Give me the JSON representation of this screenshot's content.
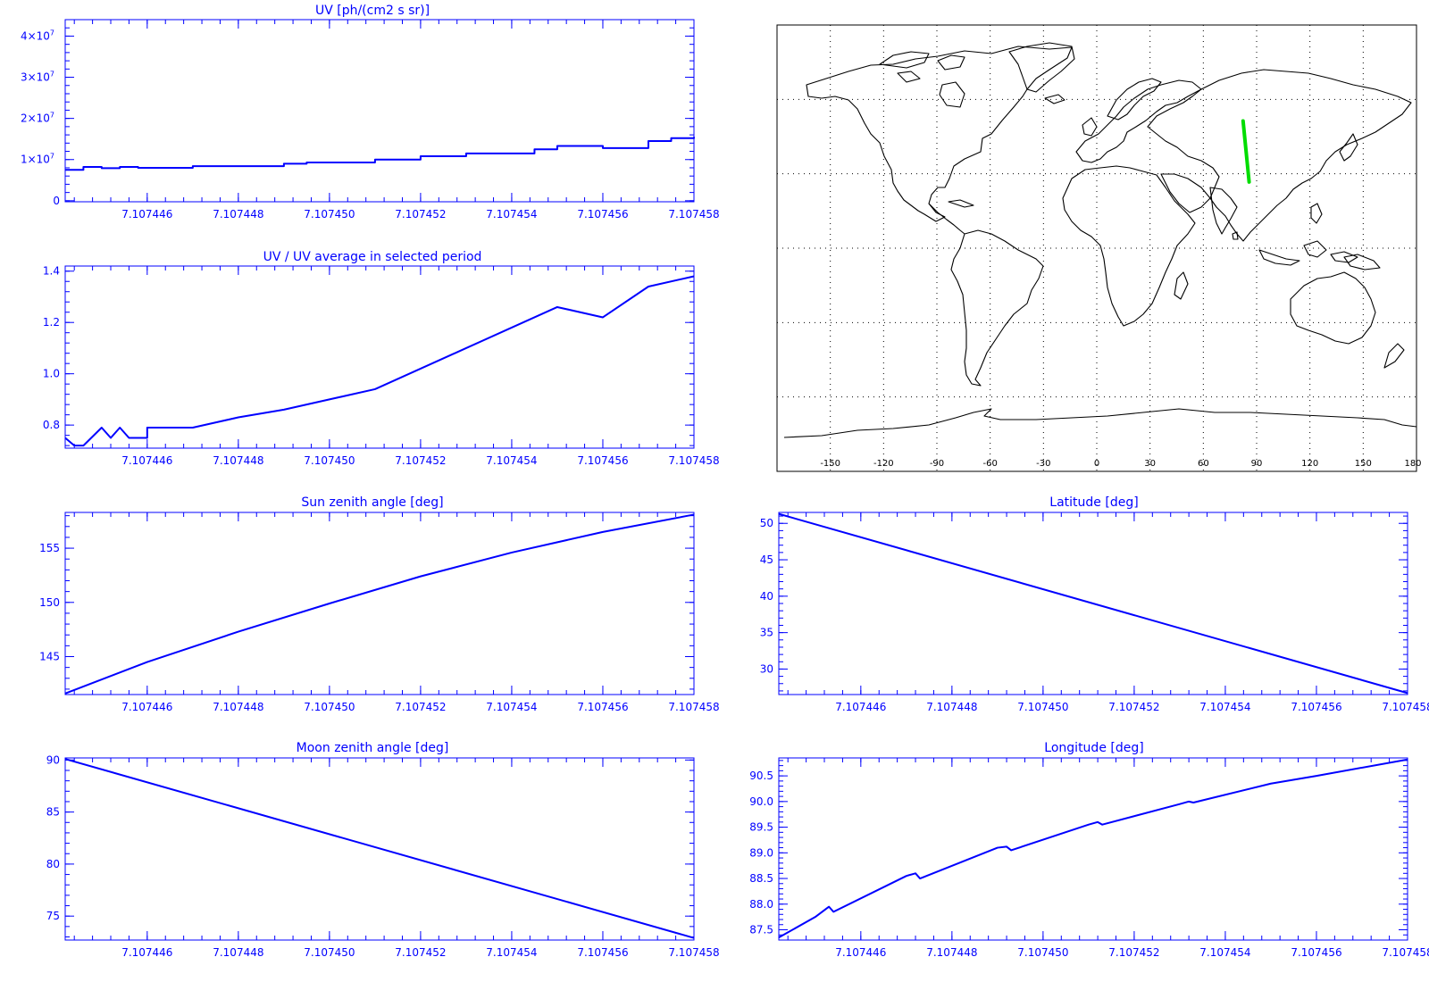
{
  "chart_data": [
    {
      "id": "uv",
      "type": "line",
      "title": "UV [ph/(cm2 s sr)]",
      "xlabel": "",
      "ylabel": "",
      "xlim": [
        7.1074442,
        7.107458
      ],
      "ylim": [
        -250000,
        44000000
      ],
      "xticks": [
        {
          "value": 7.107446,
          "label": "7.107446"
        },
        {
          "value": 7.107448,
          "label": "7.107448"
        },
        {
          "value": 7.10745,
          "label": "7.107450"
        },
        {
          "value": 7.107452,
          "label": "7.107452"
        },
        {
          "value": 7.107454,
          "label": "7.107454"
        },
        {
          "value": 7.107456,
          "label": "7.107456"
        },
        {
          "value": 7.107458,
          "label": "7.107458"
        }
      ],
      "yticks": [
        {
          "value": 0,
          "label": "0"
        },
        {
          "value": 10000000,
          "label": "1×10",
          "exp": "7"
        },
        {
          "value": 20000000,
          "label": "2×10",
          "exp": "7"
        },
        {
          "value": 30000000,
          "label": "3×10",
          "exp": "7"
        },
        {
          "value": 40000000,
          "label": "4×10",
          "exp": "7"
        }
      ],
      "series": [
        {
          "step": true,
          "x": [
            7.1074442,
            7.1074446,
            7.107445,
            7.1074454,
            7.1074458,
            7.107447,
            7.107449,
            7.1074495,
            7.107451,
            7.107452,
            7.107453,
            7.1074545,
            7.107455,
            7.107456,
            7.107457,
            7.1074575,
            7.107458
          ],
          "y": [
            7500000,
            8200000,
            7900000,
            8200000,
            8000000,
            8400000,
            9000000,
            9300000,
            10000000,
            10800000,
            11500000,
            12500000,
            13300000,
            12800000,
            14500000,
            15200000,
            15500000
          ]
        }
      ],
      "grid": false
    },
    {
      "id": "uv-ratio",
      "type": "line",
      "title": "UV / UV average in selected period",
      "xlabel": "",
      "ylabel": "",
      "xlim": [
        7.1074442,
        7.107458
      ],
      "ylim": [
        0.71,
        1.42
      ],
      "xticks": [
        {
          "value": 7.107446,
          "label": "7.107446"
        },
        {
          "value": 7.107448,
          "label": "7.107448"
        },
        {
          "value": 7.10745,
          "label": "7.107450"
        },
        {
          "value": 7.107452,
          "label": "7.107452"
        },
        {
          "value": 7.107454,
          "label": "7.107454"
        },
        {
          "value": 7.107456,
          "label": "7.107456"
        },
        {
          "value": 7.107458,
          "label": "7.107458"
        }
      ],
      "yticks": [
        {
          "value": 0.8,
          "label": "0.8"
        },
        {
          "value": 1.0,
          "label": "1.0"
        },
        {
          "value": 1.2,
          "label": "1.2"
        },
        {
          "value": 1.4,
          "label": "1.4"
        }
      ],
      "series": [
        {
          "x": [
            7.1074442,
            7.1074444,
            7.1074446,
            7.107445,
            7.1074452,
            7.1074454,
            7.1074456,
            7.107446,
            7.107446,
            7.107447,
            7.107448,
            7.107449,
            7.10745,
            7.107451,
            7.107452,
            7.107453,
            7.107454,
            7.107455,
            7.107456,
            7.107457,
            7.107458
          ],
          "y": [
            0.75,
            0.72,
            0.72,
            0.79,
            0.75,
            0.79,
            0.75,
            0.75,
            0.79,
            0.79,
            0.83,
            0.86,
            0.9,
            0.94,
            1.02,
            1.1,
            1.18,
            1.26,
            1.22,
            1.34,
            1.38
          ]
        }
      ],
      "grid": false
    },
    {
      "id": "sun-zenith",
      "type": "line",
      "title": "Sun zenith angle [deg]",
      "xlabel": "",
      "ylabel": "",
      "xlim": [
        7.1074442,
        7.107458
      ],
      "ylim": [
        141.5,
        158.3
      ],
      "xticks": [
        {
          "value": 7.107446,
          "label": "7.107446"
        },
        {
          "value": 7.107448,
          "label": "7.107448"
        },
        {
          "value": 7.10745,
          "label": "7.107450"
        },
        {
          "value": 7.107452,
          "label": "7.107452"
        },
        {
          "value": 7.107454,
          "label": "7.107454"
        },
        {
          "value": 7.107456,
          "label": "7.107456"
        },
        {
          "value": 7.107458,
          "label": "7.107458"
        }
      ],
      "yticks": [
        {
          "value": 145,
          "label": "145"
        },
        {
          "value": 150,
          "label": "150"
        },
        {
          "value": 155,
          "label": "155"
        }
      ],
      "series": [
        {
          "x": [
            7.1074442,
            7.107446,
            7.107448,
            7.10745,
            7.107452,
            7.107454,
            7.107456,
            7.107458
          ],
          "y": [
            141.6,
            144.5,
            147.3,
            149.9,
            152.4,
            154.6,
            156.5,
            158.1
          ]
        }
      ],
      "grid": false
    },
    {
      "id": "latitude",
      "type": "line",
      "title": "Latitude [deg]",
      "xlabel": "",
      "ylabel": "",
      "xlim": [
        7.1074442,
        7.107458
      ],
      "ylim": [
        26.5,
        51.5
      ],
      "xticks": [
        {
          "value": 7.107446,
          "label": "7.107446"
        },
        {
          "value": 7.107448,
          "label": "7.107448"
        },
        {
          "value": 7.10745,
          "label": "7.107450"
        },
        {
          "value": 7.107452,
          "label": "7.107452"
        },
        {
          "value": 7.107454,
          "label": "7.107454"
        },
        {
          "value": 7.107456,
          "label": "7.107456"
        },
        {
          "value": 7.107458,
          "label": "7.107458"
        }
      ],
      "yticks": [
        {
          "value": 30,
          "label": "30"
        },
        {
          "value": 35,
          "label": "35"
        },
        {
          "value": 40,
          "label": "40"
        },
        {
          "value": 45,
          "label": "45"
        },
        {
          "value": 50,
          "label": "50"
        }
      ],
      "series": [
        {
          "x": [
            7.1074442,
            7.107458
          ],
          "y": [
            51.3,
            26.7
          ]
        }
      ],
      "grid": false
    },
    {
      "id": "moon-zenith",
      "type": "line",
      "title": "Moon zenith angle [deg]",
      "xlabel": "",
      "ylabel": "",
      "xlim": [
        7.1074442,
        7.107458
      ],
      "ylim": [
        72.7,
        90.2
      ],
      "xticks": [
        {
          "value": 7.107446,
          "label": "7.107446"
        },
        {
          "value": 7.107448,
          "label": "7.107448"
        },
        {
          "value": 7.10745,
          "label": "7.107450"
        },
        {
          "value": 7.107452,
          "label": "7.107452"
        },
        {
          "value": 7.107454,
          "label": "7.107454"
        },
        {
          "value": 7.107456,
          "label": "7.107456"
        },
        {
          "value": 7.107458,
          "label": "7.107458"
        }
      ],
      "yticks": [
        {
          "value": 75,
          "label": "75"
        },
        {
          "value": 80,
          "label": "80"
        },
        {
          "value": 85,
          "label": "85"
        },
        {
          "value": 90,
          "label": "90"
        }
      ],
      "series": [
        {
          "x": [
            7.1074442,
            7.107458
          ],
          "y": [
            90.1,
            72.9
          ]
        }
      ],
      "grid": false
    },
    {
      "id": "longitude",
      "type": "line",
      "title": "Longitude [deg]",
      "xlabel": "",
      "ylabel": "",
      "xlim": [
        7.1074442,
        7.107458
      ],
      "ylim": [
        87.3,
        90.85
      ],
      "xticks": [
        {
          "value": 7.107446,
          "label": "7.107446"
        },
        {
          "value": 7.107448,
          "label": "7.107448"
        },
        {
          "value": 7.10745,
          "label": "7.107450"
        },
        {
          "value": 7.107452,
          "label": "7.107452"
        },
        {
          "value": 7.107454,
          "label": "7.107454"
        },
        {
          "value": 7.107456,
          "label": "7.107456"
        },
        {
          "value": 7.107458,
          "label": "7.107458"
        }
      ],
      "yticks": [
        {
          "value": 87.5,
          "label": "87.5"
        },
        {
          "value": 88.0,
          "label": "88.0"
        },
        {
          "value": 88.5,
          "label": "88.5"
        },
        {
          "value": 89.0,
          "label": "89.0"
        },
        {
          "value": 89.5,
          "label": "89.5"
        },
        {
          "value": 90.0,
          "label": "90.0"
        },
        {
          "value": 90.5,
          "label": "90.5"
        }
      ],
      "series": [
        {
          "x": [
            7.1074442,
            7.107445,
            7.1074453,
            7.1074454,
            7.107447,
            7.1074472,
            7.1074473,
            7.107449,
            7.1074492,
            7.1074493,
            7.107451,
            7.1074512,
            7.1074513,
            7.107453,
            7.1074532,
            7.1074533,
            7.107455,
            7.107456,
            7.107458
          ],
          "y": [
            87.35,
            87.75,
            87.95,
            87.85,
            88.55,
            88.6,
            88.5,
            89.1,
            89.12,
            89.05,
            89.55,
            89.6,
            89.55,
            89.95,
            90.0,
            89.98,
            90.35,
            90.5,
            90.82
          ]
        }
      ],
      "grid": false
    }
  ],
  "map": {
    "type": "map",
    "projection": "equirectangular",
    "lon_range": [
      -180,
      180
    ],
    "lat_range": [
      -90,
      90
    ],
    "lon_ticks": [
      "-150",
      "-120",
      "-90",
      "-60",
      "-30",
      "0",
      "30",
      "60",
      "90",
      "120",
      "150",
      "180"
    ],
    "track": {
      "color": "#00dd00",
      "lon": [
        87.4,
        90.8
      ],
      "lat": [
        51.3,
        26.7
      ]
    },
    "grid": "dotted"
  },
  "colors": {
    "plot": "#0000ff",
    "coast": "#000000",
    "track": "#00dd00"
  }
}
